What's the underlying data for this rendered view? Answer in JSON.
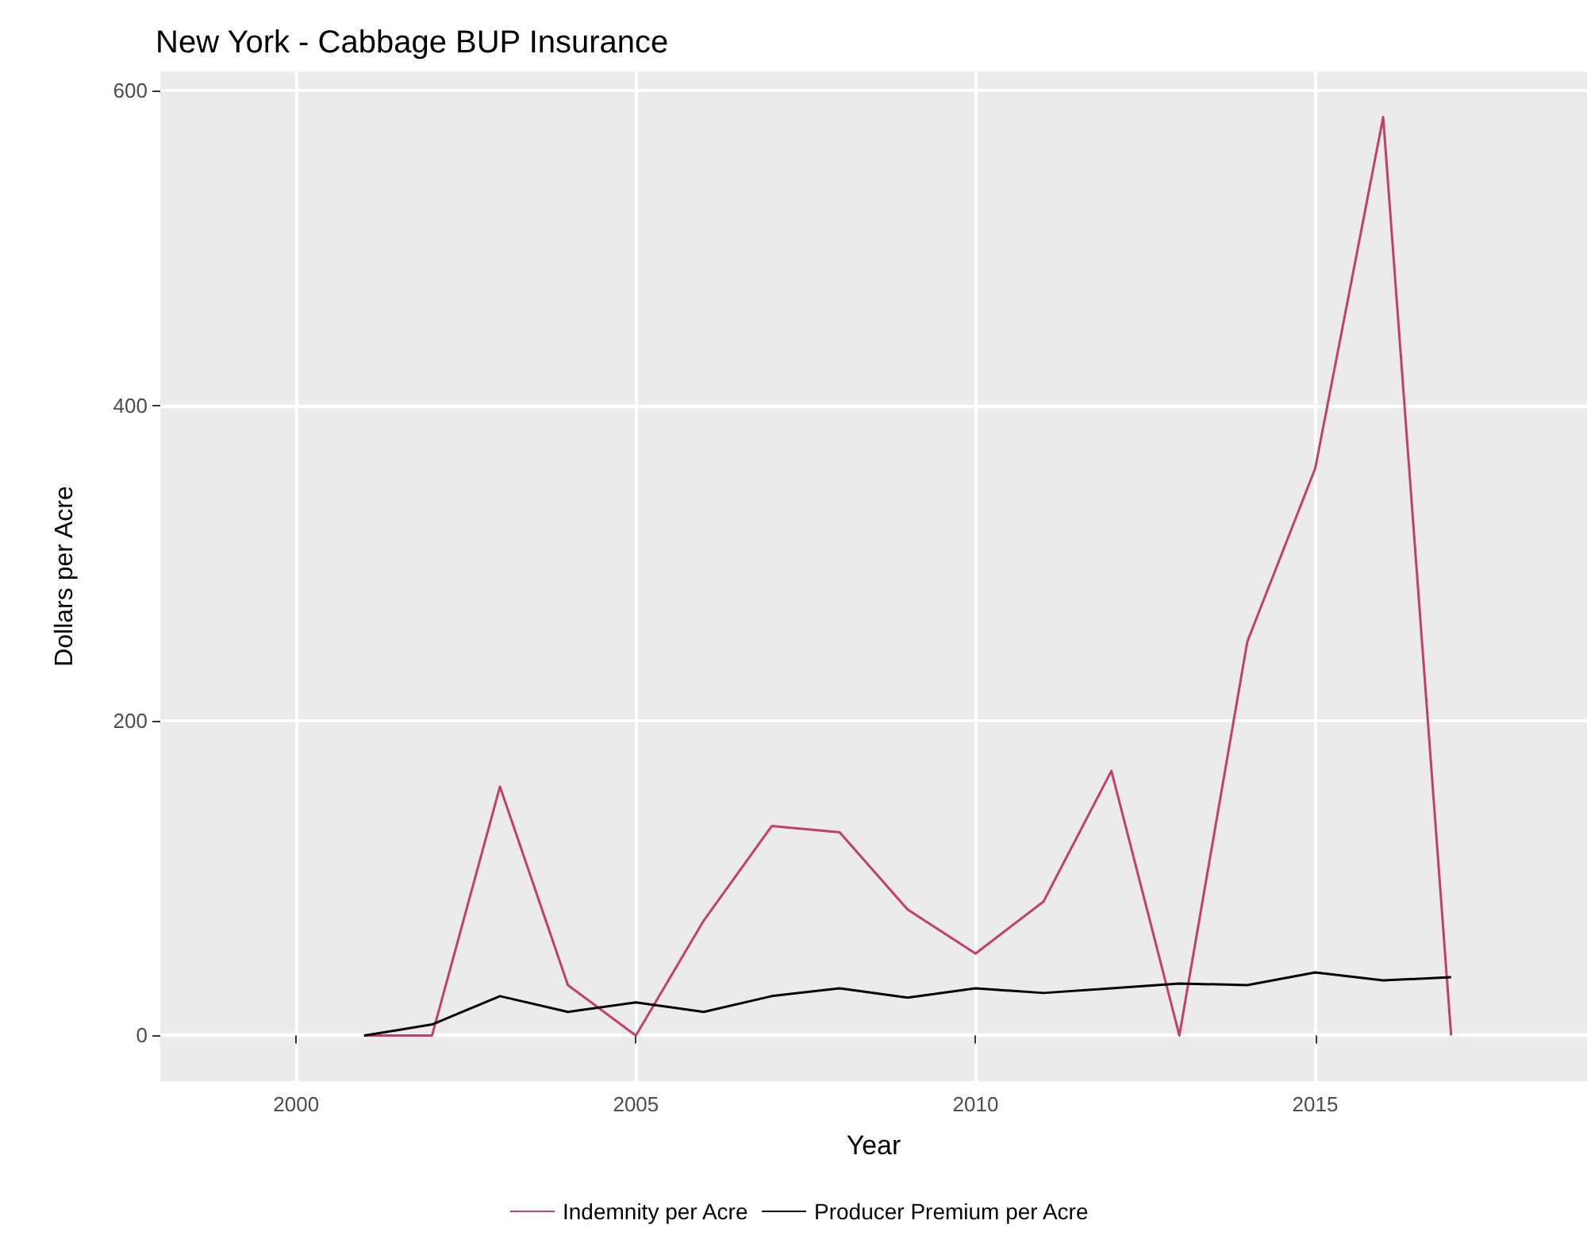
{
  "chart_data": {
    "type": "line",
    "title": "New York - Cabbage BUP Insurance",
    "xlabel": "Year",
    "ylabel": "Dollars per Acre",
    "x": [
      2001,
      2002,
      2003,
      2004,
      2005,
      2006,
      2007,
      2008,
      2009,
      2010,
      2011,
      2012,
      2013,
      2014,
      2015,
      2016,
      2017
    ],
    "series": [
      {
        "name": "Indemnity per Acre",
        "color": "#c0406a",
        "values": [
          0,
          0,
          158,
          32,
          0,
          73,
          133,
          129,
          80,
          52,
          85,
          168,
          0,
          250,
          360,
          583,
          0
        ]
      },
      {
        "name": "Producer Premium per Acre",
        "color": "#000000",
        "values": [
          0,
          7,
          25,
          15,
          21,
          15,
          25,
          30,
          24,
          30,
          27,
          30,
          33,
          32,
          40,
          35,
          37
        ]
      }
    ],
    "xlim": [
      1998,
      2019
    ],
    "xticks": [
      2000,
      2005,
      2010,
      2015
    ],
    "ylim": [
      -29,
      612
    ],
    "yticks": [
      0,
      200,
      400,
      600
    ],
    "grid": true,
    "legend": "bottom",
    "marker": "none",
    "line_style": "solid"
  }
}
